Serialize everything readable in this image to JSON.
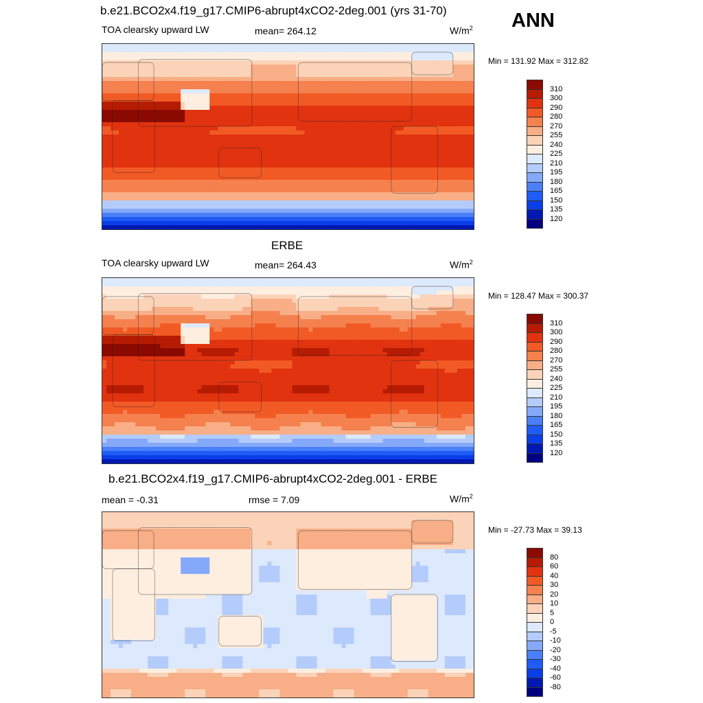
{
  "header": {
    "title": "b.e21.BCO2x4.f19_g17.CMIP6-abrupt4xCO2-2deg.001 (yrs 31-70)",
    "season": "ANN"
  },
  "units_base": "W/m",
  "units_exp": "2",
  "colors": {
    "abs": [
      "#000080",
      "#0019b3",
      "#0a3ee8",
      "#1e5cf5",
      "#4a7ff7",
      "#84a9fa",
      "#b4ccfb",
      "#dde9fc",
      "#fdeee0",
      "#fbd3b8",
      "#f8ae86",
      "#f5814f",
      "#f25a25",
      "#e13310",
      "#b61c03",
      "#8a0a00"
    ],
    "diff": [
      "#000080",
      "#0019b3",
      "#0a3ee8",
      "#1e5cf5",
      "#4a7ff7",
      "#84a9fa",
      "#b4ccfb",
      "#dde9fc",
      "#fdeee0",
      "#fbd3b8",
      "#f8ae86",
      "#f5814f",
      "#f25a25",
      "#e13310",
      "#b61c03",
      "#8a0a00"
    ]
  },
  "chart_data": [
    {
      "type": "heatmap",
      "title": "b.e21.BCO2x4.f19_g17.CMIP6-abrupt4xCO2-2deg.001 (yrs 31-70)",
      "variable": "TOA clearsky upward LW",
      "mean_label": "mean= 264.12",
      "minmax": "Min = 131.92 Max = 312.82",
      "levels": [
        "310",
        "300",
        "290",
        "280",
        "270",
        "255",
        "240",
        "225",
        "210",
        "195",
        "180",
        "165",
        "150",
        "135",
        "120"
      ]
    },
    {
      "type": "heatmap",
      "title": "ERBE",
      "variable": "TOA clearsky upward LW",
      "mean_label": "mean= 264.43",
      "minmax": "Min = 128.47 Max = 300.37",
      "levels": [
        "310",
        "300",
        "290",
        "280",
        "270",
        "255",
        "240",
        "225",
        "210",
        "195",
        "180",
        "165",
        "150",
        "135",
        "120"
      ]
    },
    {
      "type": "heatmap",
      "title": "b.e21.BCO2x4.f19_g17.CMIP6-abrupt4xCO2-2deg.001 - ERBE",
      "variable": "mean =  -0.31",
      "mean_label": "rmse =   7.09",
      "minmax": "Min = -27.73 Max =  39.13",
      "levels": [
        "80",
        "60",
        "40",
        "30",
        "20",
        "10",
        "5",
        "0",
        "-5",
        "-10",
        "-20",
        "-30",
        "-40",
        "-60",
        "-80"
      ]
    }
  ]
}
